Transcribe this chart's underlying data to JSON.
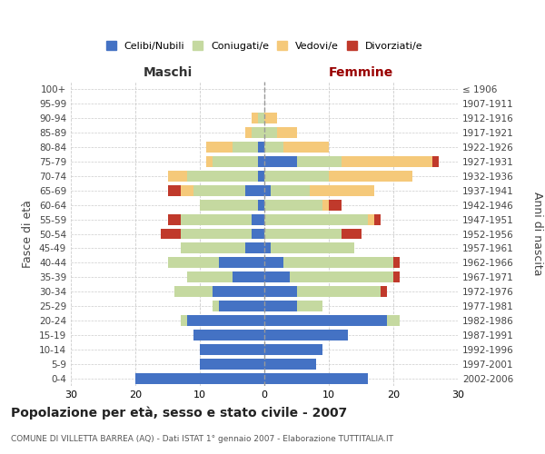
{
  "age_groups": [
    "0-4",
    "5-9",
    "10-14",
    "15-19",
    "20-24",
    "25-29",
    "30-34",
    "35-39",
    "40-44",
    "45-49",
    "50-54",
    "55-59",
    "60-64",
    "65-69",
    "70-74",
    "75-79",
    "80-84",
    "85-89",
    "90-94",
    "95-99",
    "100+"
  ],
  "birth_years": [
    "2002-2006",
    "1997-2001",
    "1992-1996",
    "1987-1991",
    "1982-1986",
    "1977-1981",
    "1972-1976",
    "1967-1971",
    "1962-1966",
    "1957-1961",
    "1952-1956",
    "1947-1951",
    "1942-1946",
    "1937-1941",
    "1932-1936",
    "1927-1931",
    "1922-1926",
    "1917-1921",
    "1912-1916",
    "1907-1911",
    "≤ 1906"
  ],
  "male": {
    "celibi": [
      20,
      10,
      10,
      11,
      12,
      7,
      8,
      5,
      7,
      3,
      2,
      2,
      1,
      3,
      1,
      1,
      1,
      0,
      0,
      0,
      0
    ],
    "coniugati": [
      0,
      0,
      0,
      0,
      1,
      1,
      6,
      7,
      8,
      10,
      11,
      11,
      9,
      8,
      11,
      7,
      4,
      2,
      1,
      0,
      0
    ],
    "vedovi": [
      0,
      0,
      0,
      0,
      0,
      0,
      0,
      0,
      0,
      0,
      0,
      0,
      0,
      2,
      3,
      1,
      4,
      1,
      1,
      0,
      0
    ],
    "divorziati": [
      0,
      0,
      0,
      0,
      0,
      0,
      0,
      0,
      0,
      0,
      3,
      2,
      0,
      2,
      0,
      0,
      0,
      0,
      0,
      0,
      0
    ]
  },
  "female": {
    "celibi": [
      16,
      8,
      9,
      13,
      19,
      5,
      5,
      4,
      3,
      1,
      0,
      0,
      0,
      1,
      0,
      5,
      0,
      0,
      0,
      0,
      0
    ],
    "coniugati": [
      0,
      0,
      0,
      0,
      2,
      4,
      13,
      16,
      17,
      13,
      12,
      16,
      9,
      6,
      10,
      7,
      3,
      2,
      0,
      0,
      0
    ],
    "vedovi": [
      0,
      0,
      0,
      0,
      0,
      0,
      0,
      0,
      0,
      0,
      0,
      1,
      1,
      10,
      13,
      14,
      7,
      3,
      2,
      0,
      0
    ],
    "divorziati": [
      0,
      0,
      0,
      0,
      0,
      0,
      1,
      1,
      1,
      0,
      3,
      1,
      2,
      0,
      0,
      1,
      0,
      0,
      0,
      0,
      0
    ]
  },
  "colors": {
    "celibi": "#4472C4",
    "coniugati": "#C5D9A0",
    "vedovi": "#F5C97A",
    "divorziati": "#C0392B"
  },
  "xlim": 30,
  "title": "Popolazione per età, sesso e stato civile - 2007",
  "subtitle": "COMUNE DI VILLETTA BARREA (AQ) - Dati ISTAT 1° gennaio 2007 - Elaborazione TUTTITALIA.IT",
  "ylabel_left": "Fasce di età",
  "ylabel_right": "Anni di nascita",
  "xlabel_left": "Maschi",
  "xlabel_right": "Femmine",
  "bg_color": "#ffffff",
  "grid_color": "#cccccc"
}
